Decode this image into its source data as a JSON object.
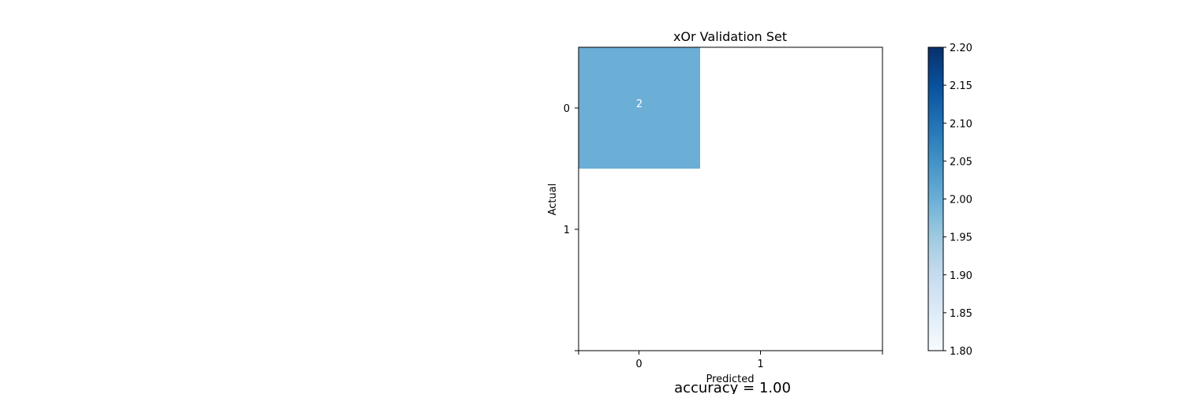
{
  "chart_data": {
    "type": "heatmap",
    "title": "xOr Validation Set",
    "xlabel": "Predicted",
    "ylabel": "Actual",
    "x_categories": [
      "0",
      "1"
    ],
    "y_categories": [
      "0",
      "1"
    ],
    "cells": [
      {
        "row": 0,
        "col": 0,
        "value": 2,
        "label": "2"
      }
    ],
    "colormap": "Blues",
    "colorbar": {
      "min": 1.8,
      "max": 2.2,
      "ticks": [
        "1.80",
        "1.85",
        "1.90",
        "1.95",
        "2.00",
        "2.05",
        "2.10",
        "2.15",
        "2.20"
      ]
    },
    "grid": false
  },
  "footer": {
    "accuracy_text": "accuracy = 1.00"
  },
  "colors": {
    "cell_fill": "#6baed6",
    "cell_text": "#ffffff",
    "axis": "#000000",
    "cmap_low": "#f7fbff",
    "cmap_high": "#08306b"
  }
}
